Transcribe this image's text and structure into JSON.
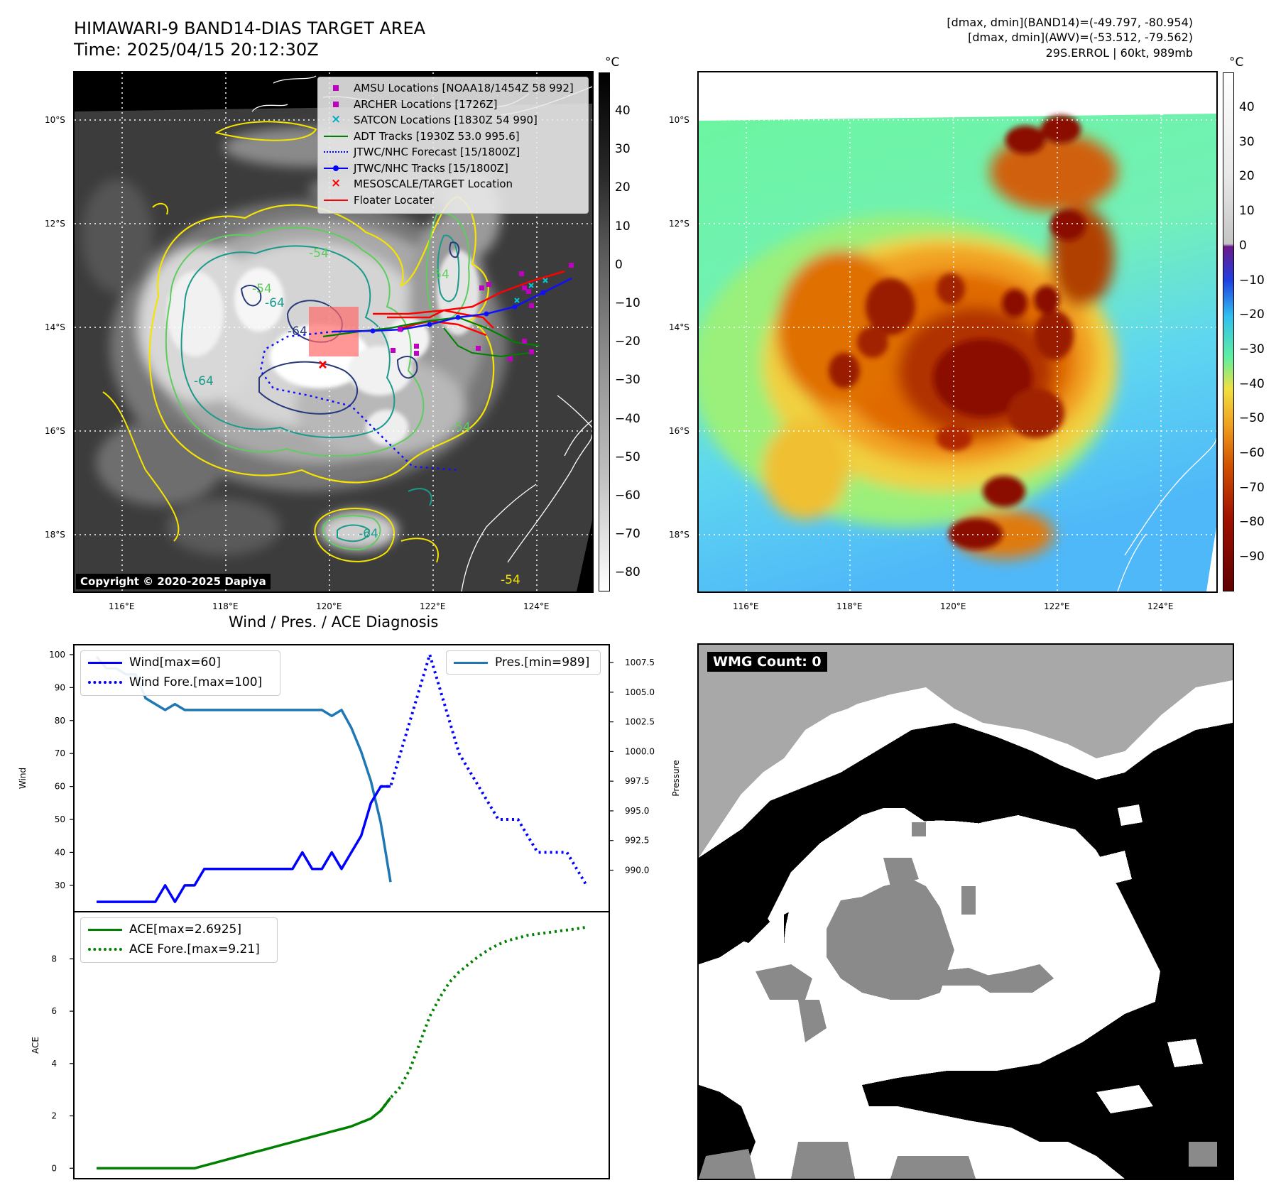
{
  "header": {
    "title_line1": "HIMAWARI-9 BAND14-DIAS TARGET AREA",
    "title_line2": "Time: 2025/04/15 20:12:30Z",
    "info_line1": "[dmax, dmin](BAND14)=(-49.797, -80.954)",
    "info_line2": "[dmax, dmin](AWV)=(-53.512, -79.562)",
    "info_line3": "29S.ERROL | 60kt, 989mb"
  },
  "map": {
    "lat_labels": [
      "10°S",
      "12°S",
      "14°S",
      "16°S",
      "18°S"
    ],
    "lon_labels": [
      "116°E",
      "118°E",
      "120°E",
      "122°E",
      "124°E"
    ],
    "copyright": "Copyright © 2020-2025 Dapiya",
    "contour_labels": [
      "-54",
      "-64",
      "-64",
      "-64",
      "-54",
      "-54",
      "-64",
      "-54",
      "-54"
    ],
    "legend": [
      {
        "label": "AMSU Locations [NOAA18/1454Z 58 992]",
        "color": "#c000c0",
        "symbol": "square"
      },
      {
        "label": "ARCHER Locations [1726Z]",
        "color": "#c000c0",
        "symbol": "square"
      },
      {
        "label": "SATCON Locations [1830Z 54 990]",
        "color": "#00b0c0",
        "symbol": "x"
      },
      {
        "label": "ADT Tracks [1930Z 53.0 995.6]",
        "color": "#008000",
        "symbol": "line"
      },
      {
        "label": "JTWC/NHC Forecast [15/1800Z]",
        "color": "#0000ff",
        "symbol": "dotted"
      },
      {
        "label": "JTWC/NHC Tracks [15/1800Z]",
        "color": "#0000ff",
        "symbol": "line-dot"
      },
      {
        "label": "MESOSCALE/TARGET Location",
        "color": "#ff0000",
        "symbol": "x"
      },
      {
        "label": "Floater Locater",
        "color": "#ff0000",
        "symbol": "line"
      }
    ]
  },
  "colorbar_left": {
    "unit": "°C",
    "ticks": [
      "40",
      "30",
      "20",
      "10",
      "0",
      "−10",
      "−20",
      "−30",
      "−40",
      "−50",
      "−60",
      "−70",
      "−80"
    ]
  },
  "colorbar_right": {
    "unit": "°C",
    "ticks": [
      "40",
      "30",
      "20",
      "10",
      "0",
      "−10",
      "−20",
      "−30",
      "−40",
      "−50",
      "−60",
      "−70",
      "−80",
      "−90"
    ]
  },
  "diagnosis": {
    "title": "Wind / Pres. / ACE Diagnosis",
    "wind_axis_label": "Wind",
    "pressure_axis_label": "Pressure",
    "ace_axis_label": "ACE",
    "wind_ticks": [
      "100",
      "90",
      "80",
      "70",
      "60",
      "50",
      "40",
      "30"
    ],
    "pressure_ticks": [
      "1007.5",
      "1005.0",
      "1002.5",
      "1000.0",
      "997.5",
      "995.0",
      "992.5",
      "990.0"
    ],
    "ace_ticks": [
      "8",
      "6",
      "4",
      "2",
      "0"
    ],
    "legend_wind": "Wind[max=60]",
    "legend_wind_fore": "Wind Fore.[max=100]",
    "legend_pres": "Pres.[min=989]",
    "legend_ace": "ACE[max=2.6925]",
    "legend_ace_fore": "ACE Fore.[max=9.21]"
  },
  "wmg": {
    "label": "WMG Count: 0"
  },
  "chart_data": [
    {
      "type": "line",
      "title": "Wind / Pres. / ACE Diagnosis",
      "ylabel": "Wind",
      "ylim": [
        22,
        103
      ],
      "x": [
        0,
        1,
        2,
        3,
        4,
        5,
        6,
        7,
        8,
        9,
        10,
        11,
        12,
        13,
        14,
        15,
        16,
        17,
        18,
        19,
        20,
        21,
        22,
        23,
        24,
        25,
        26,
        27,
        28,
        29,
        30,
        31,
        32,
        33,
        34,
        35,
        36,
        37,
        38,
        39,
        40,
        41,
        42,
        43,
        44,
        45,
        46,
        47,
        48,
        49,
        50
      ],
      "series": [
        {
          "name": "Wind[max=60]",
          "color": "#0000ff",
          "style": "solid",
          "x": [
            0,
            1,
            2,
            3,
            4,
            5,
            6,
            7,
            8,
            9,
            10,
            11,
            12,
            13,
            14,
            15,
            16,
            17,
            18,
            19,
            20,
            21,
            22,
            23,
            24,
            25,
            26,
            27,
            28,
            29,
            30
          ],
          "values": [
            25,
            25,
            25,
            25,
            25,
            25,
            25,
            30,
            25,
            30,
            30,
            35,
            35,
            35,
            35,
            35,
            35,
            35,
            35,
            35,
            35,
            40,
            35,
            35,
            40,
            35,
            40,
            45,
            55,
            60,
            60
          ]
        },
        {
          "name": "Wind Fore.[max=100]",
          "color": "#0000ff",
          "style": "dotted",
          "x": [
            29,
            30,
            31,
            32,
            33,
            34,
            35,
            36,
            37,
            38,
            39,
            40,
            41,
            42,
            43,
            44,
            45,
            46,
            47,
            48,
            49,
            50
          ],
          "values": [
            60,
            60,
            70,
            80,
            90,
            100,
            90,
            80,
            70,
            65,
            60,
            55,
            50,
            50,
            50,
            45,
            40,
            40,
            40,
            40,
            35,
            30
          ]
        },
        {
          "name": "Pres.[min=989]",
          "color": "#1f77b4",
          "style": "solid",
          "axis": "right",
          "x": [
            0,
            1,
            2,
            3,
            4,
            5,
            6,
            7,
            8,
            9,
            10,
            11,
            12,
            13,
            14,
            15,
            16,
            17,
            18,
            19,
            20,
            21,
            22,
            23,
            24,
            25,
            26,
            27,
            28,
            29,
            30
          ],
          "values": [
            1008,
            1007,
            1007,
            1006.5,
            1006.5,
            1004.5,
            1004,
            1003.5,
            1004,
            1003.5,
            1003.5,
            1003.5,
            1003.5,
            1003.5,
            1003.5,
            1003.5,
            1003.5,
            1003.5,
            1003.5,
            1003.5,
            1003.5,
            1003.5,
            1003.5,
            1003.5,
            1003,
            1003.5,
            1002,
            1000,
            997.5,
            994,
            989
          ]
        }
      ],
      "y2label": "Pressure",
      "y2lim": [
        986.5,
        1009
      ]
    },
    {
      "type": "line",
      "ylabel": "ACE",
      "ylim": [
        -0.4,
        9.8
      ],
      "series": [
        {
          "name": "ACE[max=2.6925]",
          "color": "#008000",
          "style": "solid",
          "x": [
            0,
            1,
            2,
            3,
            4,
            5,
            6,
            7,
            8,
            9,
            10,
            11,
            12,
            13,
            14,
            15,
            16,
            17,
            18,
            19,
            20,
            21,
            22,
            23,
            24,
            25,
            26,
            27,
            28,
            29,
            30
          ],
          "values": [
            0,
            0,
            0,
            0,
            0,
            0,
            0,
            0,
            0,
            0,
            0,
            0.1,
            0.2,
            0.3,
            0.4,
            0.5,
            0.6,
            0.7,
            0.8,
            0.9,
            1.0,
            1.1,
            1.2,
            1.3,
            1.4,
            1.5,
            1.6,
            1.75,
            1.9,
            2.2,
            2.69
          ]
        },
        {
          "name": "ACE Fore.[max=9.21]",
          "color": "#008000",
          "style": "dotted",
          "x": [
            29,
            30,
            31,
            32,
            33,
            34,
            35,
            36,
            37,
            38,
            39,
            40,
            41,
            42,
            43,
            44,
            45,
            46,
            47,
            48,
            49,
            50
          ],
          "values": [
            2.2,
            2.69,
            3.1,
            3.8,
            4.8,
            5.8,
            6.5,
            7.1,
            7.5,
            7.8,
            8.1,
            8.35,
            8.55,
            8.7,
            8.8,
            8.9,
            8.95,
            9.0,
            9.05,
            9.1,
            9.15,
            9.21
          ]
        }
      ]
    }
  ]
}
